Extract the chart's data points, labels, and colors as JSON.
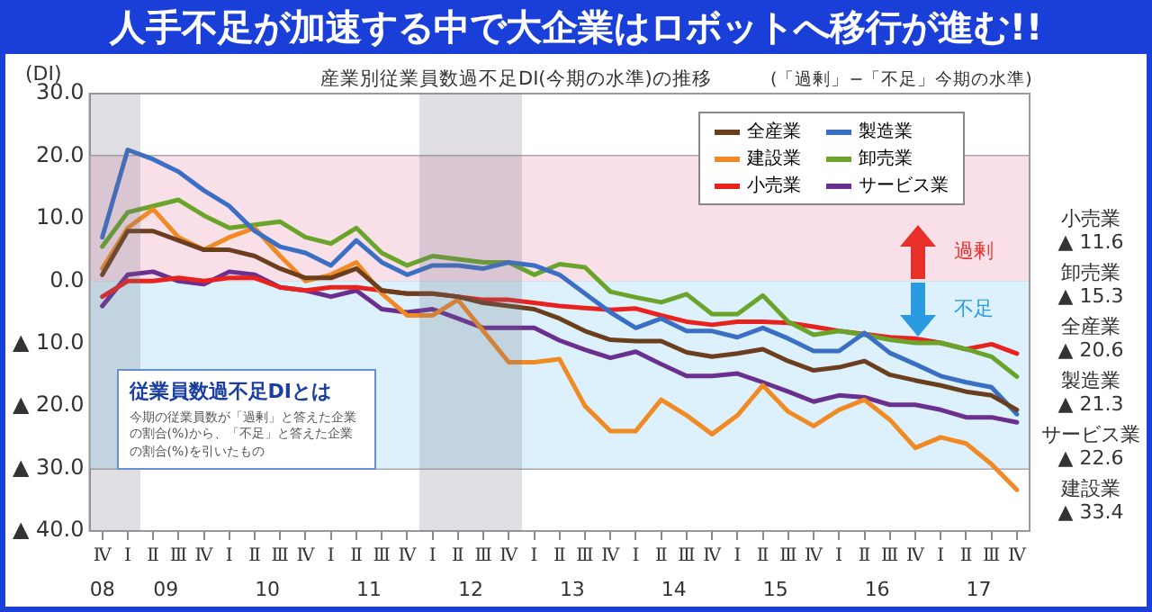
{
  "chart_data": {
    "type": "line",
    "title": "人手不足が加速する中で大企業はロボットへ移行が進む!!",
    "subtitle": "産業別従業員数過不足DI(今期の水準)の推移",
    "ylabel": "(DI)",
    "annotations": [
      "(「過剰」−「不足」今期の水準)",
      "従業員数過不足DIとは",
      "今期の従業員数が「過剰」と答えた企業の割合(%)から、「不足」と答えた企業の割合(%)を引いたもの",
      "08",
      "09",
      "10",
      "11",
      "12",
      "13",
      "14",
      "15",
      "16",
      "17",
      "小売業",
      "▲ 11.6",
      "卸売業",
      "▲ 15.3",
      "全産業",
      "▲ 20.6",
      "製造業",
      "▲ 21.3",
      "サービス業",
      "▲ 22.6",
      "建設業",
      "▲ 33.4"
    ],
    "categories": [
      "Ⅳ",
      "Ⅰ",
      "Ⅱ",
      "Ⅲ",
      "Ⅳ",
      "Ⅰ",
      "Ⅱ",
      "Ⅲ",
      "Ⅳ",
      "Ⅰ",
      "Ⅱ",
      "Ⅲ",
      "Ⅳ",
      "Ⅰ",
      "Ⅱ",
      "Ⅲ",
      "Ⅳ",
      "Ⅰ",
      "Ⅱ",
      "Ⅲ",
      "Ⅳ",
      "Ⅰ",
      "Ⅱ",
      "Ⅲ",
      "Ⅳ",
      "Ⅰ",
      "Ⅱ",
      "Ⅲ",
      "Ⅳ",
      "Ⅰ",
      "Ⅱ",
      "Ⅲ",
      "Ⅳ",
      "Ⅰ",
      "Ⅱ",
      "Ⅲ",
      "Ⅳ"
    ],
    "series": [
      {
        "name": "全産業",
        "color": "#6b3f1d",
        "values": [
          1,
          8,
          8,
          6.5,
          5,
          5,
          4,
          2,
          0.5,
          0.5,
          2,
          -1.5,
          -2,
          -2,
          -2.5,
          -3.5,
          -4,
          -4.5,
          -6,
          -8,
          -9.4,
          -9.6,
          -9.6,
          -11.4,
          -12.1,
          -11.6,
          -10.9,
          -12.8,
          -14.3,
          -13.8,
          -12.8,
          -15,
          -15.9,
          -16.7,
          -17.7,
          -18.3,
          -20.6
        ]
      },
      {
        "name": "製造業",
        "color": "#3a6fc4",
        "values": [
          7,
          21,
          19.5,
          17.5,
          14.5,
          12,
          8,
          5.5,
          4.5,
          2.5,
          6.5,
          3,
          1,
          2.5,
          2.5,
          2,
          3,
          2.5,
          1,
          -2,
          -5,
          -7.5,
          -6,
          -8,
          -8,
          -9,
          -7.5,
          -9.2,
          -11.2,
          -11.2,
          -8.3,
          -11.5,
          -13.3,
          -15.2,
          -16.2,
          -17,
          -21.3
        ]
      },
      {
        "name": "建設業",
        "color": "#f08a24",
        "values": [
          2,
          8.5,
          11.5,
          7,
          5,
          7,
          8.5,
          4,
          0,
          1,
          3,
          -2,
          -5.5,
          -5.5,
          -3,
          -8,
          -13,
          -13,
          -12.5,
          -20,
          -24,
          -24,
          -19,
          -21.5,
          -24.5,
          -21.5,
          -16.7,
          -20.9,
          -23.2,
          -20.6,
          -19,
          -22.2,
          -26.7,
          -25,
          -26,
          -29.3,
          -33.4
        ]
      },
      {
        "name": "卸売業",
        "color": "#6aa42a",
        "values": [
          5.5,
          11,
          12,
          13,
          10.5,
          8.5,
          9,
          9.5,
          7,
          6,
          8.5,
          4.5,
          2.5,
          4,
          3.5,
          3,
          3,
          1,
          2.7,
          2.2,
          -1.7,
          -2.6,
          -3.4,
          -2.1,
          -5.3,
          -5.3,
          -2.3,
          -6.5,
          -8.6,
          -8,
          -8.6,
          -9.4,
          -9.9,
          -9.9,
          -10.9,
          -12.1,
          -15.3
        ]
      },
      {
        "name": "小売業",
        "color": "#e8231f",
        "values": [
          -2.5,
          0,
          0,
          0.5,
          0,
          0.5,
          0.5,
          -1,
          -1.5,
          -1,
          -1,
          -1.5,
          -2,
          -2,
          -2.5,
          -3,
          -3,
          -3.5,
          -4,
          -4.3,
          -4.6,
          -4.4,
          -5.5,
          -6.5,
          -7,
          -6.5,
          -6.5,
          -6.7,
          -7.3,
          -8,
          -8.5,
          -9,
          -9.2,
          -9.9,
          -10.9,
          -10.1,
          -11.6
        ]
      },
      {
        "name": "サービス業",
        "color": "#6a2f8f",
        "values": [
          -4,
          1,
          1.5,
          0,
          -0.5,
          1.5,
          1,
          -1,
          -1.5,
          -2.5,
          -1.5,
          -4.5,
          -5,
          -4.5,
          -6,
          -7.5,
          -7.5,
          -7.5,
          -9.5,
          -11,
          -12.3,
          -11.3,
          -13.3,
          -15.2,
          -15.2,
          -14.8,
          -16.2,
          -17.7,
          -19.3,
          -18.3,
          -18.6,
          -19.8,
          -19.8,
          -20.6,
          -21.8,
          -21.8,
          -22.6
        ]
      }
    ],
    "ylim": [
      -40,
      30
    ],
    "yticks": [
      {
        "value": 30,
        "label": "30.0"
      },
      {
        "value": 20,
        "label": "20.0"
      },
      {
        "value": 10,
        "label": "10.0"
      },
      {
        "value": 0,
        "label": "0.0"
      },
      {
        "value": -10,
        "label": "▲ 10.0"
      },
      {
        "value": -20,
        "label": "▲ 20.0"
      },
      {
        "value": -30,
        "label": "▲ 30.0"
      },
      {
        "value": -40,
        "label": "▲ 40.0"
      }
    ],
    "bands": [
      {
        "axis": "y",
        "from": 0,
        "to": 20,
        "label": "過剰",
        "color": "#f9dfe8"
      },
      {
        "axis": "y",
        "from": -30,
        "to": 0,
        "label": "不足",
        "color": "#dcf1fb"
      }
    ],
    "grid": "y",
    "legend": "top right",
    "marker": "none",
    "line_style": "solid"
  }
}
